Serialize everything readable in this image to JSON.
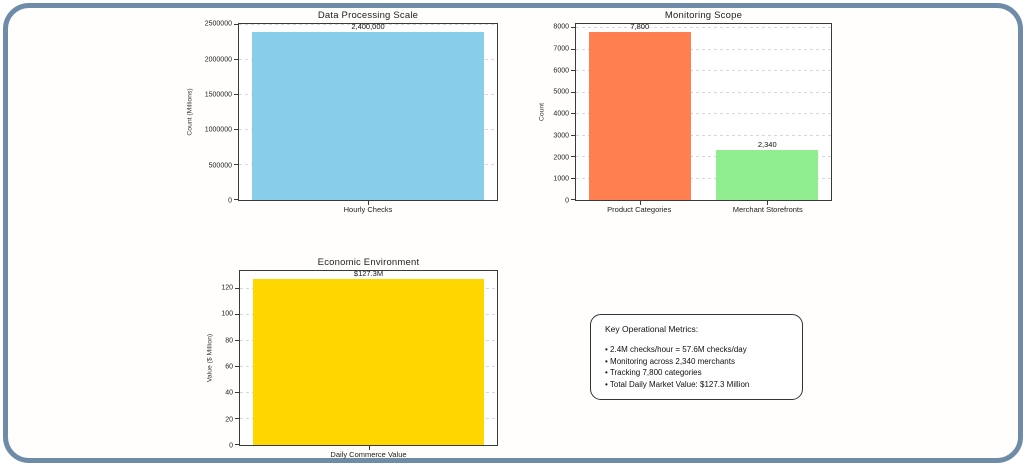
{
  "frame": {
    "border_color": "#6E8CA8",
    "background": "#ffffff"
  },
  "chart_data": [
    {
      "type": "bar",
      "title": "Data Processing Scale",
      "xlabel": "",
      "ylabel": "Count (Millions)",
      "categories": [
        "Hourly Checks"
      ],
      "values": [
        2400000
      ],
      "bar_labels": [
        "2,400,000"
      ],
      "colors": [
        "#87CEEB"
      ],
      "yticks": [
        0,
        500000,
        1000000,
        1500000,
        2000000,
        2500000
      ],
      "ytick_labels": [
        "0",
        "500000",
        "1000000",
        "1500000",
        "2000000",
        "2500000"
      ],
      "ylim": [
        0,
        2520000
      ],
      "grid": true,
      "grid_style": "dashed",
      "legend": "none"
    },
    {
      "type": "bar",
      "title": "Monitoring Scope",
      "xlabel": "",
      "ylabel": "Count",
      "categories": [
        "Product Categories",
        "Merchant Storefronts"
      ],
      "values": [
        7800,
        2340
      ],
      "bar_labels": [
        "7,800",
        "2,340"
      ],
      "colors": [
        "#FF7F50",
        "#90EE90"
      ],
      "yticks": [
        0,
        1000,
        2000,
        3000,
        4000,
        5000,
        6000,
        7000,
        8000
      ],
      "ytick_labels": [
        "0",
        "1000",
        "2000",
        "3000",
        "4000",
        "5000",
        "6000",
        "7000",
        "8000"
      ],
      "ylim": [
        0,
        8190
      ],
      "grid": true,
      "grid_style": "dashed",
      "legend": "none"
    },
    {
      "type": "bar",
      "title": "Economic Environment",
      "xlabel": "",
      "ylabel": "Value ($ Million)",
      "categories": [
        "Daily Commerce Value"
      ],
      "values": [
        127.3
      ],
      "bar_labels": [
        "$127.3M"
      ],
      "colors": [
        "#FFD700"
      ],
      "yticks": [
        0,
        20,
        40,
        60,
        80,
        100,
        120
      ],
      "ytick_labels": [
        "0",
        "20",
        "40",
        "60",
        "80",
        "100",
        "120"
      ],
      "ylim": [
        0,
        133.7
      ],
      "grid": true,
      "grid_style": "dashed",
      "legend": "none"
    }
  ],
  "metrics_box": {
    "title": "Key Operational Metrics:",
    "bullets": [
      "• 2.4M checks/hour = 57.6M checks/day",
      "• Monitoring across 2,340 merchants",
      "• Tracking 7,800 categories",
      "• Total Daily Market Value: $127.3 Million"
    ]
  }
}
